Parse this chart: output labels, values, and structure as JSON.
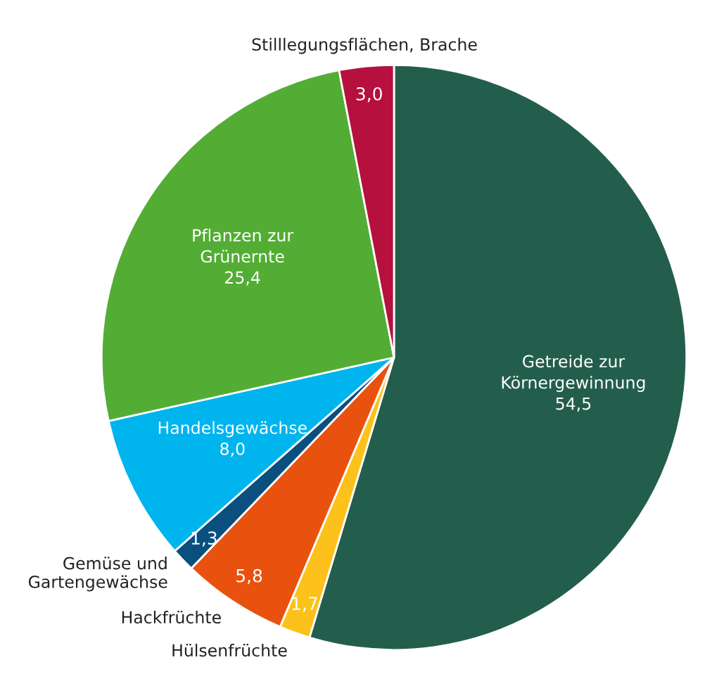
{
  "chart_data": {
    "type": "pie",
    "categories": [
      "Getreide zur Körnergewinnung",
      "Hülsenfrüchte",
      "Hackfrüchte",
      "Gemüse und Gartengewächse",
      "Handelsgewächse",
      "Pflanzen zur Grünernte",
      "Stilllegungsflächen, Brache"
    ],
    "values": [
      54.5,
      1.7,
      5.8,
      1.3,
      8.0,
      25.4,
      3.0
    ],
    "value_labels": [
      "54,5",
      "1,7",
      "5,8",
      "1,3",
      "8,0",
      "25,4",
      "3,0"
    ],
    "colors": [
      "#235e4c",
      "#fcc21b",
      "#e8520e",
      "#0a4f7e",
      "#00b4ee",
      "#53ad35",
      "#b5103e"
    ]
  }
}
